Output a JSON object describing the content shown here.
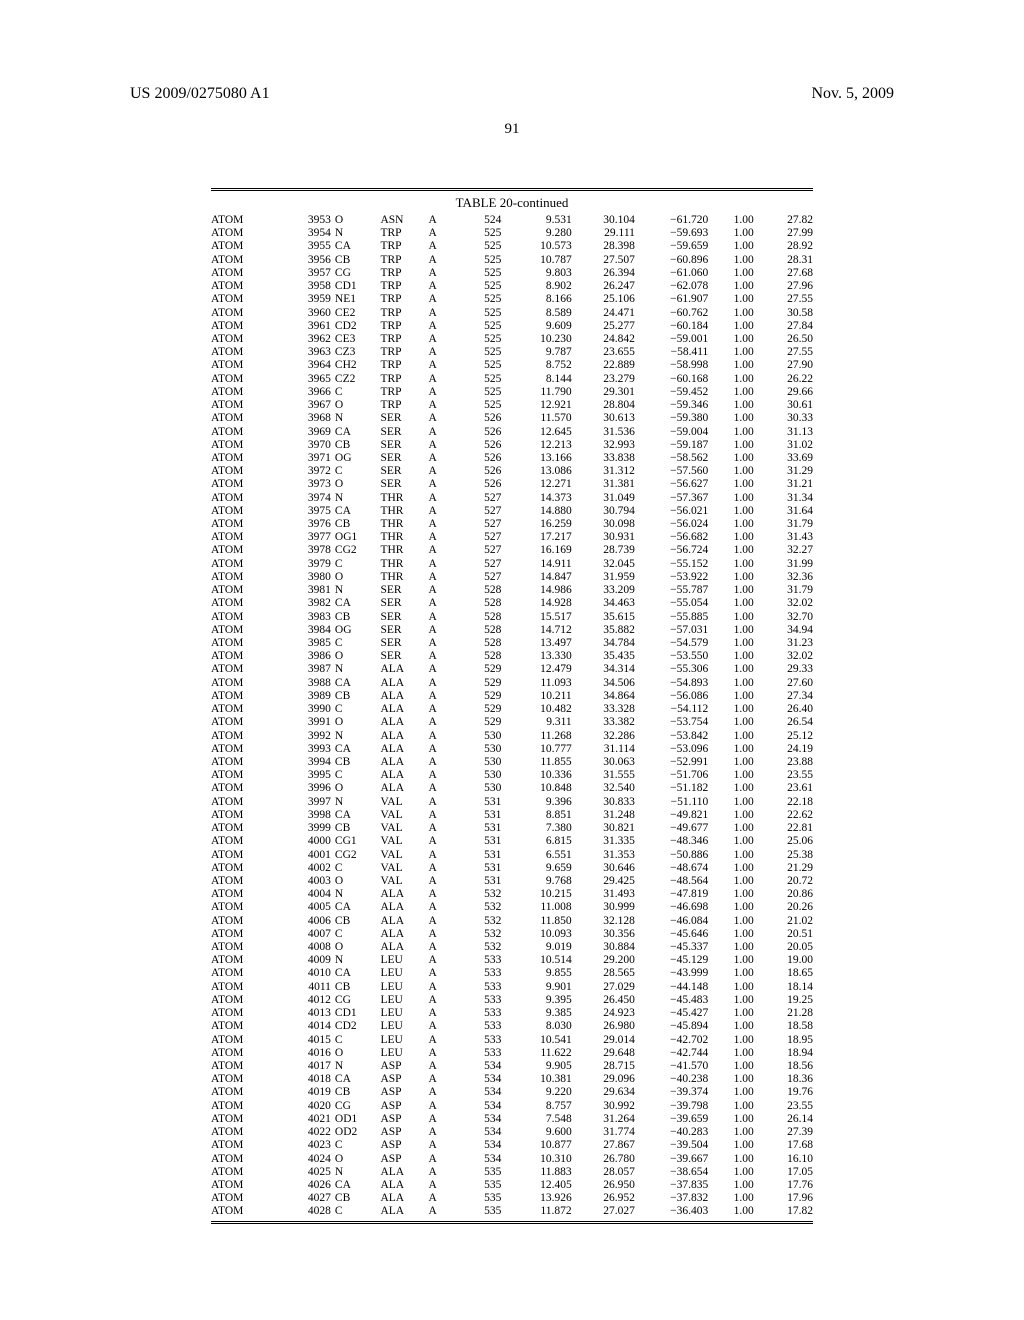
{
  "header": {
    "left": "US 2009/0275080 A1",
    "right": "Nov. 5, 2009",
    "page_number": "91"
  },
  "table": {
    "title": "TABLE 20-continued",
    "rows": [
      [
        "ATOM",
        "3953",
        "O",
        "ASN",
        "A",
        "524",
        "9.531",
        "30.104",
        "−61.720",
        "1.00",
        "27.82"
      ],
      [
        "ATOM",
        "3954",
        "N",
        "TRP",
        "A",
        "525",
        "9.280",
        "29.111",
        "−59.693",
        "1.00",
        "27.99"
      ],
      [
        "ATOM",
        "3955",
        "CA",
        "TRP",
        "A",
        "525",
        "10.573",
        "28.398",
        "−59.659",
        "1.00",
        "28.92"
      ],
      [
        "ATOM",
        "3956",
        "CB",
        "TRP",
        "A",
        "525",
        "10.787",
        "27.507",
        "−60.896",
        "1.00",
        "28.31"
      ],
      [
        "ATOM",
        "3957",
        "CG",
        "TRP",
        "A",
        "525",
        "9.803",
        "26.394",
        "−61.060",
        "1.00",
        "27.68"
      ],
      [
        "ATOM",
        "3958",
        "CD1",
        "TRP",
        "A",
        "525",
        "8.902",
        "26.247",
        "−62.078",
        "1.00",
        "27.96"
      ],
      [
        "ATOM",
        "3959",
        "NE1",
        "TRP",
        "A",
        "525",
        "8.166",
        "25.106",
        "−61.907",
        "1.00",
        "27.55"
      ],
      [
        "ATOM",
        "3960",
        "CE2",
        "TRP",
        "A",
        "525",
        "8.589",
        "24.471",
        "−60.762",
        "1.00",
        "30.58"
      ],
      [
        "ATOM",
        "3961",
        "CD2",
        "TRP",
        "A",
        "525",
        "9.609",
        "25.277",
        "−60.184",
        "1.00",
        "27.84"
      ],
      [
        "ATOM",
        "3962",
        "CE3",
        "TRP",
        "A",
        "525",
        "10.230",
        "24.842",
        "−59.001",
        "1.00",
        "26.50"
      ],
      [
        "ATOM",
        "3963",
        "CZ3",
        "TRP",
        "A",
        "525",
        "9.787",
        "23.655",
        "−58.411",
        "1.00",
        "27.55"
      ],
      [
        "ATOM",
        "3964",
        "CH2",
        "TRP",
        "A",
        "525",
        "8.752",
        "22.889",
        "−58.998",
        "1.00",
        "27.90"
      ],
      [
        "ATOM",
        "3965",
        "CZ2",
        "TRP",
        "A",
        "525",
        "8.144",
        "23.279",
        "−60.168",
        "1.00",
        "26.22"
      ],
      [
        "ATOM",
        "3966",
        "C",
        "TRP",
        "A",
        "525",
        "11.790",
        "29.301",
        "−59.452",
        "1.00",
        "29.66"
      ],
      [
        "ATOM",
        "3967",
        "O",
        "TRP",
        "A",
        "525",
        "12.921",
        "28.804",
        "−59.346",
        "1.00",
        "30.61"
      ],
      [
        "ATOM",
        "3968",
        "N",
        "SER",
        "A",
        "526",
        "11.570",
        "30.613",
        "−59.380",
        "1.00",
        "30.33"
      ],
      [
        "ATOM",
        "3969",
        "CA",
        "SER",
        "A",
        "526",
        "12.645",
        "31.536",
        "−59.004",
        "1.00",
        "31.13"
      ],
      [
        "ATOM",
        "3970",
        "CB",
        "SER",
        "A",
        "526",
        "12.213",
        "32.993",
        "−59.187",
        "1.00",
        "31.02"
      ],
      [
        "ATOM",
        "3971",
        "OG",
        "SER",
        "A",
        "526",
        "13.166",
        "33.838",
        "−58.562",
        "1.00",
        "33.69"
      ],
      [
        "ATOM",
        "3972",
        "C",
        "SER",
        "A",
        "526",
        "13.086",
        "31.312",
        "−57.560",
        "1.00",
        "31.29"
      ],
      [
        "ATOM",
        "3973",
        "O",
        "SER",
        "A",
        "526",
        "12.271",
        "31.381",
        "−56.627",
        "1.00",
        "31.21"
      ],
      [
        "ATOM",
        "3974",
        "N",
        "THR",
        "A",
        "527",
        "14.373",
        "31.049",
        "−57.367",
        "1.00",
        "31.34"
      ],
      [
        "ATOM",
        "3975",
        "CA",
        "THR",
        "A",
        "527",
        "14.880",
        "30.794",
        "−56.021",
        "1.00",
        "31.64"
      ],
      [
        "ATOM",
        "3976",
        "CB",
        "THR",
        "A",
        "527",
        "16.259",
        "30.098",
        "−56.024",
        "1.00",
        "31.79"
      ],
      [
        "ATOM",
        "3977",
        "OG1",
        "THR",
        "A",
        "527",
        "17.217",
        "30.931",
        "−56.682",
        "1.00",
        "31.43"
      ],
      [
        "ATOM",
        "3978",
        "CG2",
        "THR",
        "A",
        "527",
        "16.169",
        "28.739",
        "−56.724",
        "1.00",
        "32.27"
      ],
      [
        "ATOM",
        "3979",
        "C",
        "THR",
        "A",
        "527",
        "14.911",
        "32.045",
        "−55.152",
        "1.00",
        "31.99"
      ],
      [
        "ATOM",
        "3980",
        "O",
        "THR",
        "A",
        "527",
        "14.847",
        "31.959",
        "−53.922",
        "1.00",
        "32.36"
      ],
      [
        "ATOM",
        "3981",
        "N",
        "SER",
        "A",
        "528",
        "14.986",
        "33.209",
        "−55.787",
        "1.00",
        "31.79"
      ],
      [
        "ATOM",
        "3982",
        "CA",
        "SER",
        "A",
        "528",
        "14.928",
        "34.463",
        "−55.054",
        "1.00",
        "32.02"
      ],
      [
        "ATOM",
        "3983",
        "CB",
        "SER",
        "A",
        "528",
        "15.517",
        "35.615",
        "−55.885",
        "1.00",
        "32.70"
      ],
      [
        "ATOM",
        "3984",
        "OG",
        "SER",
        "A",
        "528",
        "14.712",
        "35.882",
        "−57.031",
        "1.00",
        "34.94"
      ],
      [
        "ATOM",
        "3985",
        "C",
        "SER",
        "A",
        "528",
        "13.497",
        "34.784",
        "−54.579",
        "1.00",
        "31.23"
      ],
      [
        "ATOM",
        "3986",
        "O",
        "SER",
        "A",
        "528",
        "13.330",
        "35.435",
        "−53.550",
        "1.00",
        "32.02"
      ],
      [
        "ATOM",
        "3987",
        "N",
        "ALA",
        "A",
        "529",
        "12.479",
        "34.314",
        "−55.306",
        "1.00",
        "29.33"
      ],
      [
        "ATOM",
        "3988",
        "CA",
        "ALA",
        "A",
        "529",
        "11.093",
        "34.506",
        "−54.893",
        "1.00",
        "27.60"
      ],
      [
        "ATOM",
        "3989",
        "CB",
        "ALA",
        "A",
        "529",
        "10.211",
        "34.864",
        "−56.086",
        "1.00",
        "27.34"
      ],
      [
        "ATOM",
        "3990",
        "C",
        "ALA",
        "A",
        "529",
        "10.482",
        "33.328",
        "−54.112",
        "1.00",
        "26.40"
      ],
      [
        "ATOM",
        "3991",
        "O",
        "ALA",
        "A",
        "529",
        "9.311",
        "33.382",
        "−53.754",
        "1.00",
        "26.54"
      ],
      [
        "ATOM",
        "3992",
        "N",
        "ALA",
        "A",
        "530",
        "11.268",
        "32.286",
        "−53.842",
        "1.00",
        "25.12"
      ],
      [
        "ATOM",
        "3993",
        "CA",
        "ALA",
        "A",
        "530",
        "10.777",
        "31.114",
        "−53.096",
        "1.00",
        "24.19"
      ],
      [
        "ATOM",
        "3994",
        "CB",
        "ALA",
        "A",
        "530",
        "11.855",
        "30.063",
        "−52.991",
        "1.00",
        "23.88"
      ],
      [
        "ATOM",
        "3995",
        "C",
        "ALA",
        "A",
        "530",
        "10.336",
        "31.555",
        "−51.706",
        "1.00",
        "23.55"
      ],
      [
        "ATOM",
        "3996",
        "O",
        "ALA",
        "A",
        "530",
        "10.848",
        "32.540",
        "−51.182",
        "1.00",
        "23.61"
      ],
      [
        "ATOM",
        "3997",
        "N",
        "VAL",
        "A",
        "531",
        "9.396",
        "30.833",
        "−51.110",
        "1.00",
        "22.18"
      ],
      [
        "ATOM",
        "3998",
        "CA",
        "VAL",
        "A",
        "531",
        "8.851",
        "31.248",
        "−49.821",
        "1.00",
        "22.62"
      ],
      [
        "ATOM",
        "3999",
        "CB",
        "VAL",
        "A",
        "531",
        "7.380",
        "30.821",
        "−49.677",
        "1.00",
        "22.81"
      ],
      [
        "ATOM",
        "4000",
        "CG1",
        "VAL",
        "A",
        "531",
        "6.815",
        "31.335",
        "−48.346",
        "1.00",
        "25.06"
      ],
      [
        "ATOM",
        "4001",
        "CG2",
        "VAL",
        "A",
        "531",
        "6.551",
        "31.353",
        "−50.886",
        "1.00",
        "25.38"
      ],
      [
        "ATOM",
        "4002",
        "C",
        "VAL",
        "A",
        "531",
        "9.659",
        "30.646",
        "−48.674",
        "1.00",
        "21.29"
      ],
      [
        "ATOM",
        "4003",
        "O",
        "VAL",
        "A",
        "531",
        "9.768",
        "29.425",
        "−48.564",
        "1.00",
        "20.72"
      ],
      [
        "ATOM",
        "4004",
        "N",
        "ALA",
        "A",
        "532",
        "10.215",
        "31.493",
        "−47.819",
        "1.00",
        "20.86"
      ],
      [
        "ATOM",
        "4005",
        "CA",
        "ALA",
        "A",
        "532",
        "11.008",
        "30.999",
        "−46.698",
        "1.00",
        "20.26"
      ],
      [
        "ATOM",
        "4006",
        "CB",
        "ALA",
        "A",
        "532",
        "11.850",
        "32.128",
        "−46.084",
        "1.00",
        "21.02"
      ],
      [
        "ATOM",
        "4007",
        "C",
        "ALA",
        "A",
        "532",
        "10.093",
        "30.356",
        "−45.646",
        "1.00",
        "20.51"
      ],
      [
        "ATOM",
        "4008",
        "O",
        "ALA",
        "A",
        "532",
        "9.019",
        "30.884",
        "−45.337",
        "1.00",
        "20.05"
      ],
      [
        "ATOM",
        "4009",
        "N",
        "LEU",
        "A",
        "533",
        "10.514",
        "29.200",
        "−45.129",
        "1.00",
        "19.00"
      ],
      [
        "ATOM",
        "4010",
        "CA",
        "LEU",
        "A",
        "533",
        "9.855",
        "28.565",
        "−43.999",
        "1.00",
        "18.65"
      ],
      [
        "ATOM",
        "4011",
        "CB",
        "LEU",
        "A",
        "533",
        "9.901",
        "27.029",
        "−44.148",
        "1.00",
        "18.14"
      ],
      [
        "ATOM",
        "4012",
        "CG",
        "LEU",
        "A",
        "533",
        "9.395",
        "26.450",
        "−45.483",
        "1.00",
        "19.25"
      ],
      [
        "ATOM",
        "4013",
        "CD1",
        "LEU",
        "A",
        "533",
        "9.385",
        "24.923",
        "−45.427",
        "1.00",
        "21.28"
      ],
      [
        "ATOM",
        "4014",
        "CD2",
        "LEU",
        "A",
        "533",
        "8.030",
        "26.980",
        "−45.894",
        "1.00",
        "18.58"
      ],
      [
        "ATOM",
        "4015",
        "C",
        "LEU",
        "A",
        "533",
        "10.541",
        "29.014",
        "−42.702",
        "1.00",
        "18.95"
      ],
      [
        "ATOM",
        "4016",
        "O",
        "LEU",
        "A",
        "533",
        "11.622",
        "29.648",
        "−42.744",
        "1.00",
        "18.94"
      ],
      [
        "ATOM",
        "4017",
        "N",
        "ASP",
        "A",
        "534",
        "9.905",
        "28.715",
        "−41.570",
        "1.00",
        "18.56"
      ],
      [
        "ATOM",
        "4018",
        "CA",
        "ASP",
        "A",
        "534",
        "10.381",
        "29.096",
        "−40.238",
        "1.00",
        "18.36"
      ],
      [
        "ATOM",
        "4019",
        "CB",
        "ASP",
        "A",
        "534",
        "9.220",
        "29.634",
        "−39.374",
        "1.00",
        "19.76"
      ],
      [
        "ATOM",
        "4020",
        "CG",
        "ASP",
        "A",
        "534",
        "8.757",
        "30.992",
        "−39.798",
        "1.00",
        "23.55"
      ],
      [
        "ATOM",
        "4021",
        "OD1",
        "ASP",
        "A",
        "534",
        "7.548",
        "31.264",
        "−39.659",
        "1.00",
        "26.14"
      ],
      [
        "ATOM",
        "4022",
        "OD2",
        "ASP",
        "A",
        "534",
        "9.600",
        "31.774",
        "−40.283",
        "1.00",
        "27.39"
      ],
      [
        "ATOM",
        "4023",
        "C",
        "ASP",
        "A",
        "534",
        "10.877",
        "27.867",
        "−39.504",
        "1.00",
        "17.68"
      ],
      [
        "ATOM",
        "4024",
        "O",
        "ASP",
        "A",
        "534",
        "10.310",
        "26.780",
        "−39.667",
        "1.00",
        "16.10"
      ],
      [
        "ATOM",
        "4025",
        "N",
        "ALA",
        "A",
        "535",
        "11.883",
        "28.057",
        "−38.654",
        "1.00",
        "17.05"
      ],
      [
        "ATOM",
        "4026",
        "CA",
        "ALA",
        "A",
        "535",
        "12.405",
        "26.950",
        "−37.835",
        "1.00",
        "17.76"
      ],
      [
        "ATOM",
        "4027",
        "CB",
        "ALA",
        "A",
        "535",
        "13.926",
        "26.952",
        "−37.832",
        "1.00",
        "17.96"
      ],
      [
        "ATOM",
        "4028",
        "C",
        "ALA",
        "A",
        "535",
        "11.872",
        "27.027",
        "−36.403",
        "1.00",
        "17.82"
      ]
    ]
  }
}
